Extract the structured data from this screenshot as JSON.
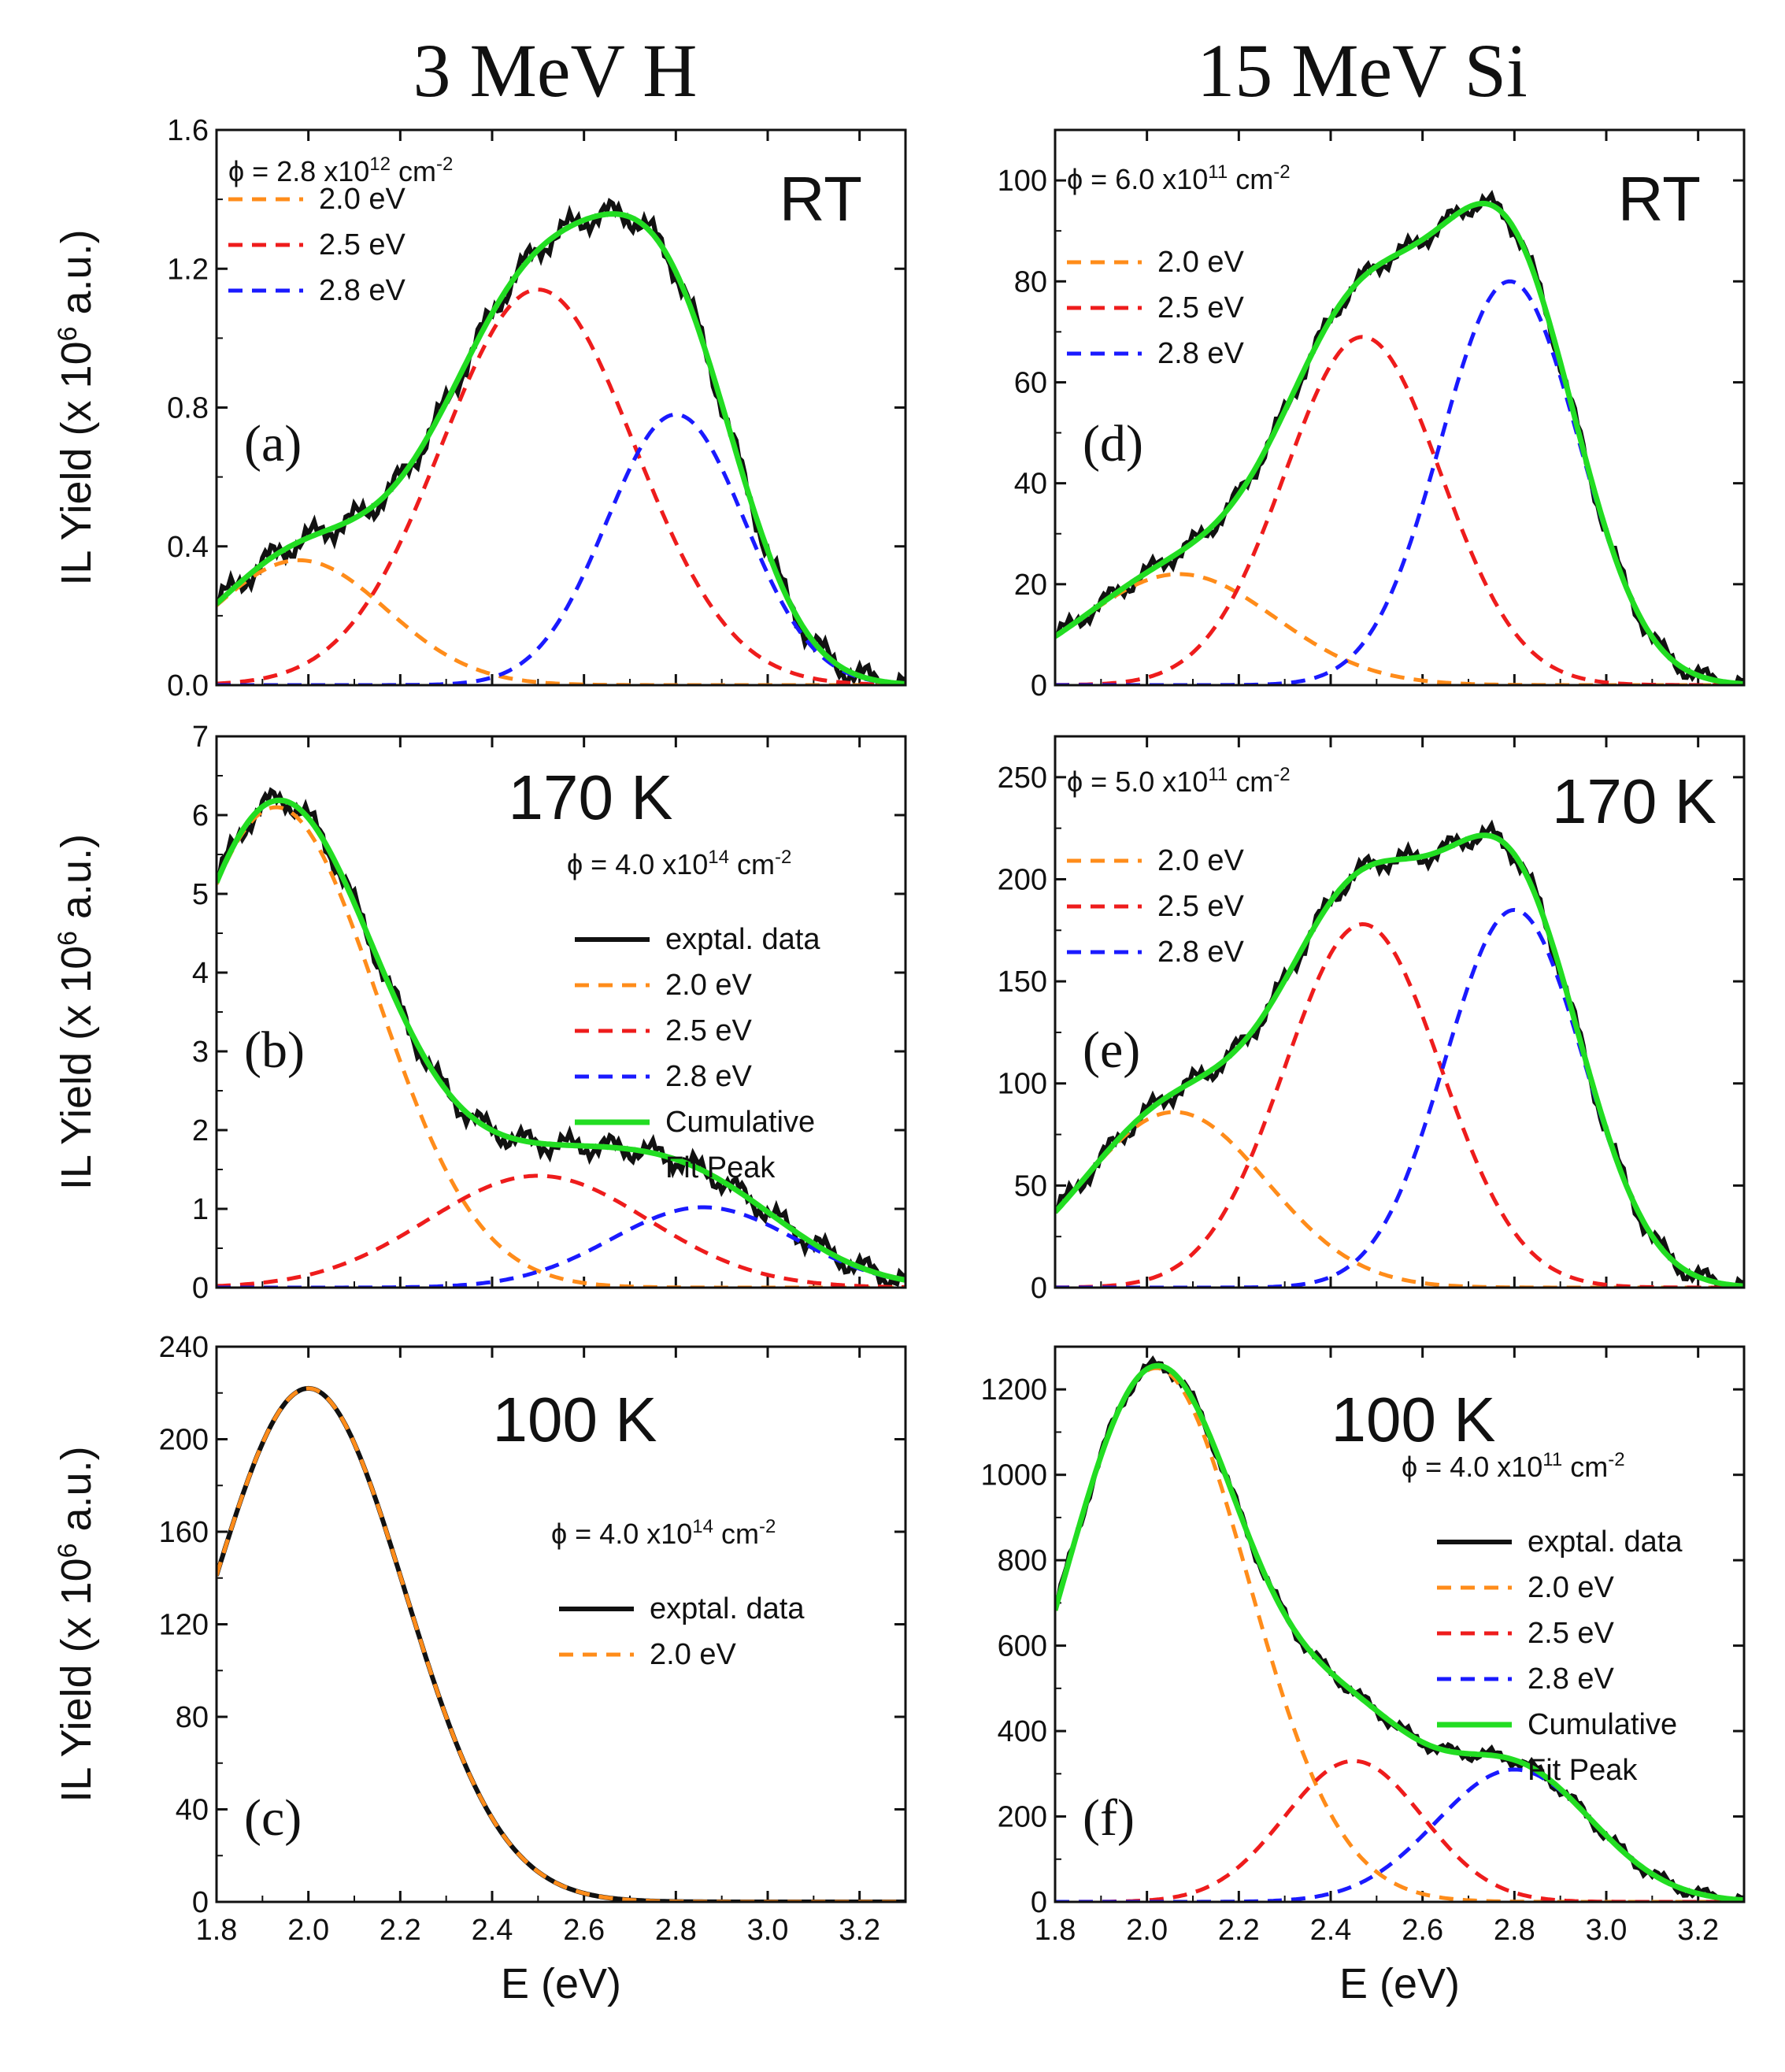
{
  "columns": [
    {
      "title": "3 MeV H"
    },
    {
      "title": "15 MeV Si"
    }
  ],
  "axes": {
    "xlabel": "E (eV)",
    "ylabel_prefix": "IL Yield (x 10",
    "ylabel_sup": "6",
    "ylabel_suffix": " a.u.)"
  },
  "colors": {
    "data": "#111111",
    "peak_2_0": "#ff8c1a",
    "peak_2_5": "#ee1c1c",
    "peak_2_8": "#1a1aff",
    "fit": "#22dd22"
  },
  "chart_data": [
    {
      "panel": "(a)",
      "temperature": "RT",
      "type": "line",
      "fluence": {
        "prefix": "ϕ = 2.8 x10",
        "exp": "12",
        "unit": " cm",
        "unit_exp": "-2"
      },
      "legend": [
        "2.0 eV",
        "2.5 eV",
        "2.8 eV"
      ],
      "legend_series": [
        "peak_2_0",
        "peak_2_5",
        "peak_2_8"
      ],
      "xlim": [
        1.8,
        3.3
      ],
      "ylim": [
        0,
        1.6
      ],
      "xticks": [
        "1.8",
        "2.0",
        "2.2",
        "2.4",
        "2.6",
        "2.8",
        "3.0",
        "3.2"
      ],
      "yticks": [
        "0.0",
        "0.4",
        "0.8",
        "1.2",
        "1.6"
      ],
      "ytick_values": [
        0,
        0.4,
        0.8,
        1.2,
        1.6
      ],
      "show_xticklabels": false,
      "peaks": [
        {
          "key": "peak_2_0",
          "name": "2.0 eV",
          "center": 1.98,
          "sigma": 0.19,
          "amp": 0.36
        },
        {
          "key": "peak_2_5",
          "name": "2.5 eV",
          "center": 2.5,
          "sigma": 0.21,
          "amp": 1.14
        },
        {
          "key": "peak_2_8",
          "name": "2.8 eV",
          "center": 2.8,
          "sigma": 0.15,
          "amp": 0.78
        }
      ],
      "show_fit": true,
      "noise": 0.03
    },
    {
      "panel": "(b)",
      "temperature": "170 K",
      "type": "line",
      "fluence": {
        "prefix": "ϕ = 4.0 x10",
        "exp": "14",
        "unit": " cm",
        "unit_exp": "-2"
      },
      "legend": [
        "exptal. data",
        "2.0 eV",
        "2.5 eV",
        "2.8 eV",
        "Cumulative",
        "Fit Peak"
      ],
      "legend_series": [
        "data",
        "peak_2_0",
        "peak_2_5",
        "peak_2_8",
        "fit",
        ""
      ],
      "xlim": [
        1.8,
        3.3
      ],
      "ylim": [
        0,
        7
      ],
      "xticks": [
        "1.8",
        "2.0",
        "2.2",
        "2.4",
        "2.6",
        "2.8",
        "3.0",
        "3.2"
      ],
      "yticks": [
        "0",
        "1",
        "2",
        "3",
        "4",
        "5",
        "6",
        "7"
      ],
      "ytick_values": [
        0,
        1,
        2,
        3,
        4,
        5,
        6,
        7
      ],
      "show_xticklabels": false,
      "peaks": [
        {
          "key": "peak_2_0",
          "name": "2.0 eV",
          "center": 1.93,
          "sigma": 0.22,
          "amp": 6.1
        },
        {
          "key": "peak_2_5",
          "name": "2.5 eV",
          "center": 2.5,
          "sigma": 0.24,
          "amp": 1.42
        },
        {
          "key": "peak_2_8",
          "name": "2.8 eV",
          "center": 2.86,
          "sigma": 0.2,
          "amp": 1.02
        }
      ],
      "show_fit": true,
      "noise": 0.12
    },
    {
      "panel": "(c)",
      "temperature": "100 K",
      "type": "line",
      "fluence": {
        "prefix": "ϕ = 4.0 x10",
        "exp": "14",
        "unit": " cm",
        "unit_exp": "-2"
      },
      "legend": [
        "exptal. data",
        "2.0 eV"
      ],
      "legend_series": [
        "data",
        "peak_2_0"
      ],
      "xlim": [
        1.8,
        3.3
      ],
      "ylim": [
        0,
        240
      ],
      "xticks": [
        "1.8",
        "2.0",
        "2.2",
        "2.4",
        "2.6",
        "2.8",
        "3.0",
        "3.2"
      ],
      "yticks": [
        "0",
        "40",
        "80",
        "120",
        "160",
        "200",
        "240"
      ],
      "ytick_values": [
        0,
        40,
        80,
        120,
        160,
        200,
        240
      ],
      "show_xticklabels": true,
      "peaks": [
        {
          "key": "peak_2_0",
          "name": "2.0 eV",
          "center": 2.0,
          "sigma": 0.21,
          "amp": 222
        }
      ],
      "show_fit": false,
      "noise": 0.0
    },
    {
      "panel": "(d)",
      "temperature": "RT",
      "type": "line",
      "fluence": {
        "prefix": "ϕ = 6.0 x10",
        "exp": "11",
        "unit": " cm",
        "unit_exp": "-2"
      },
      "legend": [
        "2.0 eV",
        "2.5 eV",
        "2.8 eV"
      ],
      "legend_series": [
        "peak_2_0",
        "peak_2_5",
        "peak_2_8"
      ],
      "xlim": [
        1.8,
        3.3
      ],
      "ylim": [
        0,
        110
      ],
      "xticks": [
        "1.8",
        "2.0",
        "2.2",
        "2.4",
        "2.6",
        "2.8",
        "3.0",
        "3.2"
      ],
      "yticks": [
        "0",
        "20",
        "40",
        "60",
        "80",
        "100"
      ],
      "ytick_values": [
        0,
        20,
        40,
        60,
        80,
        100
      ],
      "show_xticklabels": false,
      "peaks": [
        {
          "key": "peak_2_0",
          "name": "2.0 eV",
          "center": 2.07,
          "sigma": 0.21,
          "amp": 22
        },
        {
          "key": "peak_2_5",
          "name": "2.5 eV",
          "center": 2.47,
          "sigma": 0.17,
          "amp": 69
        },
        {
          "key": "peak_2_8",
          "name": "2.8 eV",
          "center": 2.79,
          "sigma": 0.15,
          "amp": 80
        }
      ],
      "show_fit": true,
      "noise": 1.5
    },
    {
      "panel": "(e)",
      "temperature": "170 K",
      "type": "line",
      "fluence": {
        "prefix": "ϕ = 5.0 x10",
        "exp": "11",
        "unit": " cm",
        "unit_exp": "-2"
      },
      "legend": [
        "2.0 eV",
        "2.5 eV",
        "2.8 eV"
      ],
      "legend_series": [
        "peak_2_0",
        "peak_2_5",
        "peak_2_8"
      ],
      "xlim": [
        1.8,
        3.3
      ],
      "ylim": [
        0,
        270
      ],
      "xticks": [
        "1.8",
        "2.0",
        "2.2",
        "2.4",
        "2.6",
        "2.8",
        "3.0",
        "3.2"
      ],
      "yticks": [
        "0",
        "50",
        "100",
        "150",
        "200",
        "250"
      ],
      "ytick_values": [
        0,
        50,
        100,
        150,
        200,
        250
      ],
      "show_xticklabels": false,
      "peaks": [
        {
          "key": "peak_2_0",
          "name": "2.0 eV",
          "center": 2.06,
          "sigma": 0.2,
          "amp": 86
        },
        {
          "key": "peak_2_5",
          "name": "2.5 eV",
          "center": 2.47,
          "sigma": 0.17,
          "amp": 178
        },
        {
          "key": "peak_2_8",
          "name": "2.8 eV",
          "center": 2.8,
          "sigma": 0.15,
          "amp": 185
        }
      ],
      "show_fit": true,
      "noise": 4
    },
    {
      "panel": "(f)",
      "temperature": "100 K",
      "type": "line",
      "fluence": {
        "prefix": "ϕ = 4.0 x10",
        "exp": "11",
        "unit": " cm",
        "unit_exp": "-2"
      },
      "legend": [
        "exptal. data",
        "2.0 eV",
        "2.5 eV",
        "2.8 eV",
        "Cumulative",
        "Fit Peak"
      ],
      "legend_series": [
        "data",
        "peak_2_0",
        "peak_2_5",
        "peak_2_8",
        "fit",
        ""
      ],
      "xlim": [
        1.8,
        3.3
      ],
      "ylim": [
        0,
        1300
      ],
      "xticks": [
        "1.8",
        "2.0",
        "2.2",
        "2.4",
        "2.6",
        "2.8",
        "3.0",
        "3.2"
      ],
      "yticks": [
        "0",
        "200",
        "400",
        "600",
        "800",
        "1000",
        "1200"
      ],
      "ytick_values": [
        0,
        200,
        400,
        600,
        800,
        1000,
        1200
      ],
      "show_xticklabels": true,
      "peaks": [
        {
          "key": "peak_2_0",
          "name": "2.0 eV",
          "center": 2.02,
          "sigma": 0.2,
          "amp": 1250
        },
        {
          "key": "peak_2_5",
          "name": "2.5 eV",
          "center": 2.45,
          "sigma": 0.15,
          "amp": 330
        },
        {
          "key": "peak_2_8",
          "name": "2.8 eV",
          "center": 2.8,
          "sigma": 0.17,
          "amp": 310
        }
      ],
      "show_fit": true,
      "noise": 12
    }
  ]
}
